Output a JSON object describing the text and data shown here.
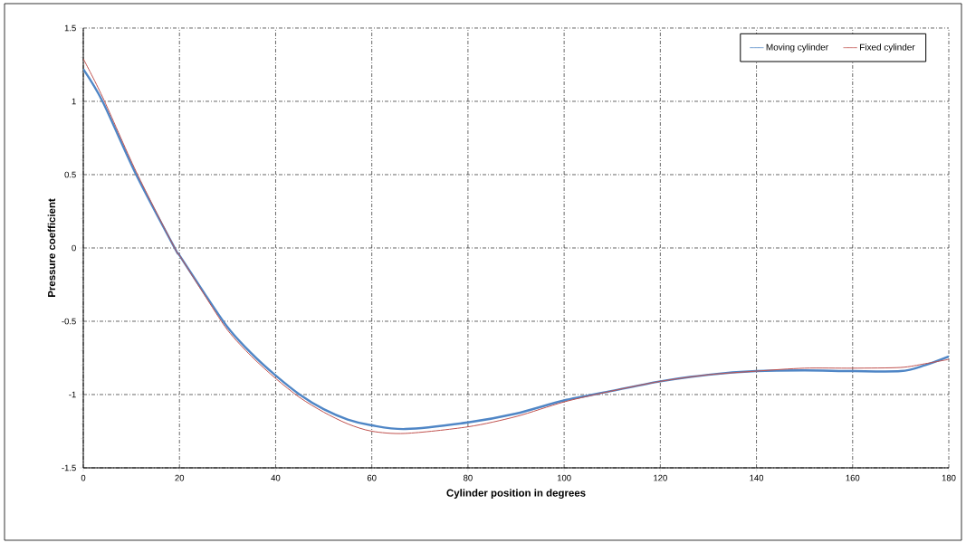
{
  "chart_data": {
    "type": "line",
    "xlabel": "Cylinder position in degrees",
    "ylabel": "Pressure coefficient",
    "x": [
      0,
      4,
      11,
      19,
      20,
      25,
      30,
      35,
      40,
      45,
      50,
      55,
      60,
      67,
      80,
      90,
      100,
      110,
      120,
      130,
      140,
      150,
      160,
      170,
      175,
      180
    ],
    "series": [
      {
        "name": "Moving cylinder",
        "color": "#4f86c6",
        "values": [
          1.22,
          1.0,
          0.5,
          0.0,
          -0.05,
          -0.3,
          -0.54,
          -0.72,
          -0.87,
          -1.0,
          -1.1,
          -1.17,
          -1.21,
          -1.235,
          -1.19,
          -1.13,
          -1.04,
          -0.975,
          -0.91,
          -0.865,
          -0.84,
          -0.835,
          -0.84,
          -0.84,
          -0.8,
          -0.74
        ]
      },
      {
        "name": "Fixed cylinder",
        "color": "#c0504d",
        "values": [
          1.29,
          1.03,
          0.52,
          0.0,
          -0.05,
          -0.31,
          -0.56,
          -0.74,
          -0.89,
          -1.02,
          -1.12,
          -1.2,
          -1.25,
          -1.265,
          -1.22,
          -1.15,
          -1.05,
          -0.975,
          -0.91,
          -0.865,
          -0.84,
          -0.82,
          -0.82,
          -0.815,
          -0.79,
          -0.76
        ]
      }
    ],
    "xlim": [
      0,
      180
    ],
    "xticks": [
      0,
      20,
      40,
      60,
      80,
      100,
      120,
      140,
      160,
      180
    ],
    "ylim": [
      -1.5,
      1.5
    ],
    "yticks": [
      -1.5,
      -1,
      -0.5,
      0,
      0.5,
      1,
      1.5
    ],
    "grid": true,
    "legend": "top right",
    "line_style": "solid",
    "marker": "none"
  }
}
